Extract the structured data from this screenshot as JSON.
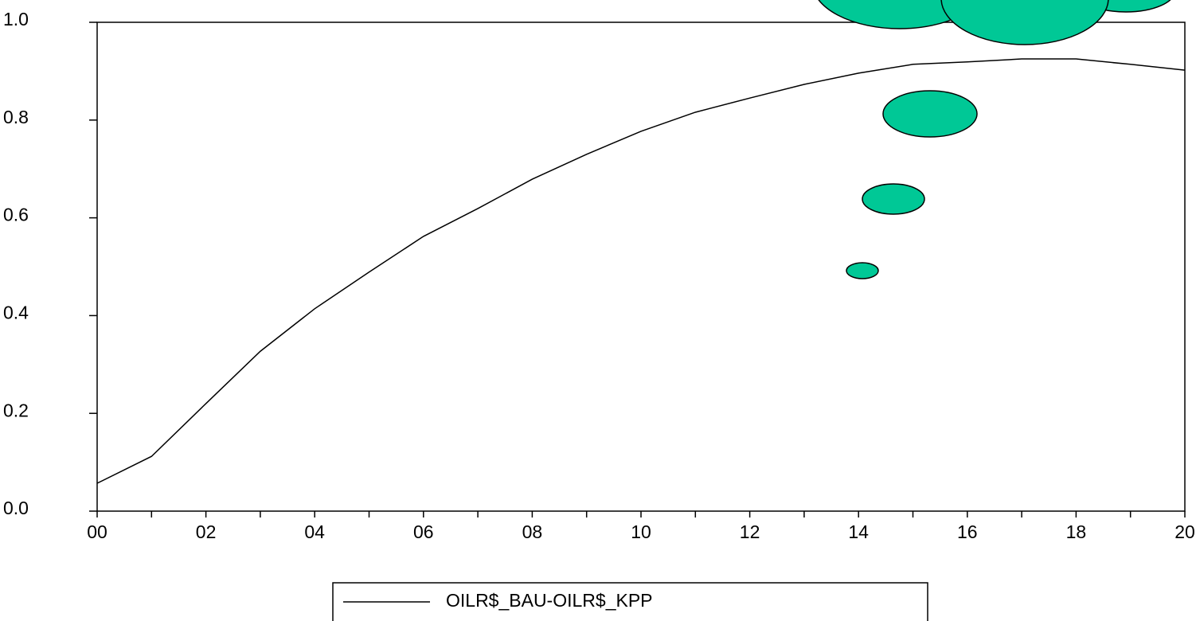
{
  "chart_data": {
    "type": "line",
    "categories": [
      "00",
      null,
      "02",
      null,
      "04",
      null,
      "06",
      null,
      "08",
      null,
      "10",
      null,
      "12",
      null,
      "14",
      null,
      "16",
      null,
      "18",
      null,
      "20"
    ],
    "series": [
      {
        "name": "OILR$_BAU-OILR$_KPP",
        "color": "#000000",
        "values": [
          0.057,
          0.112,
          0.22,
          0.327,
          0.414,
          0.489,
          0.562,
          0.619,
          0.679,
          0.73,
          0.777,
          0.816,
          0.845,
          0.873,
          0.896,
          0.914,
          0.919,
          0.925,
          0.925,
          0.914,
          0.902
        ]
      }
    ],
    "ylim": [
      0,
      1
    ],
    "yticks": [
      {
        "value": 0,
        "label": "0.0"
      },
      0.2,
      0.4,
      0.6,
      0.8,
      {
        "value": 1,
        "label": "1.0"
      }
    ],
    "legend": "bottom"
  }
}
